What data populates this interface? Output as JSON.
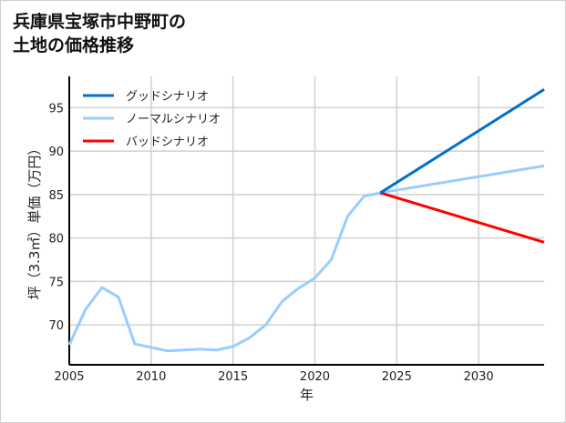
{
  "chart_data": {
    "type": "line",
    "title_lines": [
      "兵庫県宝塚市中野町の",
      "土地の価格推移"
    ],
    "xlabel": "年",
    "ylabel": "坪（3.3㎡）単価（万円）",
    "xlim": [
      2005,
      2034
    ],
    "ylim": [
      65.4,
      98.6
    ],
    "xticks": [
      2005,
      2010,
      2015,
      2020,
      2025,
      2030
    ],
    "yticks": [
      70,
      75,
      80,
      85,
      90,
      95
    ],
    "grid": true,
    "legend_position": "top-left",
    "series": [
      {
        "name": "グッドシナリオ",
        "color": "#0070cc",
        "x": [
          2024,
          2034
        ],
        "y": [
          85.2,
          97.1
        ]
      },
      {
        "name": "ノーマルシナリオ",
        "color": "#99ccff",
        "x": [
          2005,
          2006,
          2007,
          2008,
          2009,
          2010,
          2011,
          2012,
          2013,
          2014,
          2015,
          2016,
          2017,
          2018,
          2019,
          2020,
          2021,
          2022,
          2023,
          2024,
          2034
        ],
        "y": [
          67.7,
          71.8,
          74.3,
          73.2,
          67.8,
          67.4,
          67.0,
          67.1,
          67.2,
          67.1,
          67.5,
          68.5,
          70.0,
          72.7,
          74.2,
          75.4,
          77.5,
          82.5,
          84.8,
          85.2,
          88.3
        ]
      },
      {
        "name": "バッドシナリオ",
        "color": "#ff0000",
        "x": [
          2024,
          2034
        ],
        "y": [
          85.2,
          79.5
        ]
      }
    ]
  }
}
